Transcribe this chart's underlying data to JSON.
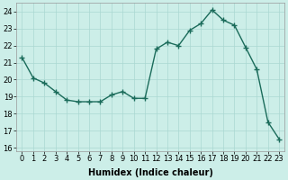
{
  "x": [
    0,
    1,
    2,
    3,
    4,
    5,
    6,
    7,
    8,
    9,
    10,
    11,
    12,
    13,
    14,
    15,
    16,
    17,
    18,
    19,
    20,
    21,
    22,
    23
  ],
  "y": [
    21.3,
    20.1,
    19.8,
    19.3,
    18.8,
    18.7,
    18.7,
    18.7,
    19.1,
    19.3,
    18.9,
    18.9,
    21.8,
    22.2,
    22.0,
    22.9,
    23.3,
    24.1,
    23.5,
    23.2,
    21.9,
    20.6,
    17.5,
    16.5
  ],
  "line_color": "#1a6b5a",
  "marker": "+",
  "marker_size": 4,
  "linewidth": 1.0,
  "xlabel": "Humidex (Indice chaleur)",
  "xlim": [
    -0.5,
    23.5
  ],
  "ylim": [
    15.8,
    24.5
  ],
  "yticks": [
    16,
    17,
    18,
    19,
    20,
    21,
    22,
    23,
    24
  ],
  "xticks": [
    0,
    1,
    2,
    3,
    4,
    5,
    6,
    7,
    8,
    9,
    10,
    11,
    12,
    13,
    14,
    15,
    16,
    17,
    18,
    19,
    20,
    21,
    22,
    23
  ],
  "bg_color": "#cceee8",
  "grid_color": "#aad8d2",
  "label_fontsize": 7,
  "tick_fontsize": 6
}
